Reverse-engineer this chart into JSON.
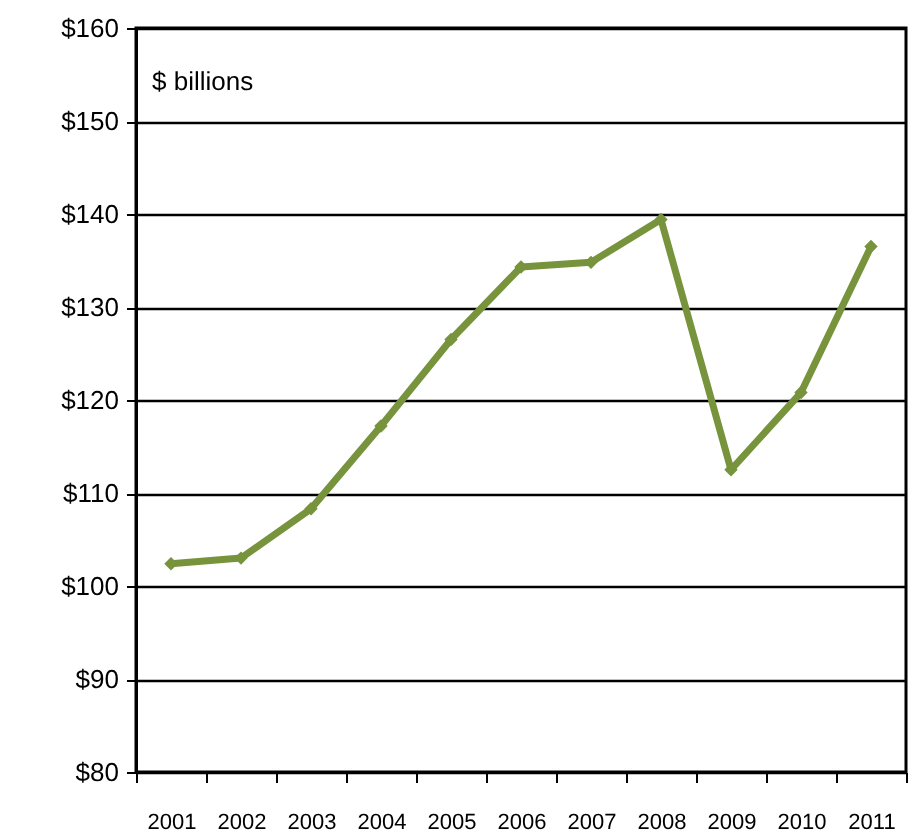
{
  "chart_data": {
    "type": "line",
    "annotations": [
      "$ billions"
    ],
    "categories": [
      "2001",
      "2002",
      "2003",
      "2004",
      "2005",
      "2006",
      "2007",
      "2008",
      "2009",
      "2010",
      "2011"
    ],
    "series": [
      {
        "color": "#77933c",
        "values": [
          102.4,
          103.0,
          108.3,
          117.2,
          126.5,
          134.3,
          134.8,
          139.4,
          112.5,
          120.8,
          136.5
        ]
      }
    ],
    "ylim": [
      80,
      160
    ],
    "yticks": [
      {
        "value": 80,
        "label": "$80"
      },
      {
        "value": 90,
        "label": "$90"
      },
      {
        "value": 100,
        "label": "$100"
      },
      {
        "value": 110,
        "label": "$110"
      },
      {
        "value": 120,
        "label": "$120"
      },
      {
        "value": 130,
        "label": "$130"
      },
      {
        "value": 140,
        "label": "$140"
      },
      {
        "value": 150,
        "label": "$150"
      },
      {
        "value": 160,
        "label": "$160"
      }
    ],
    "grid": "y",
    "marker": "diamond",
    "line_style": "solid"
  }
}
